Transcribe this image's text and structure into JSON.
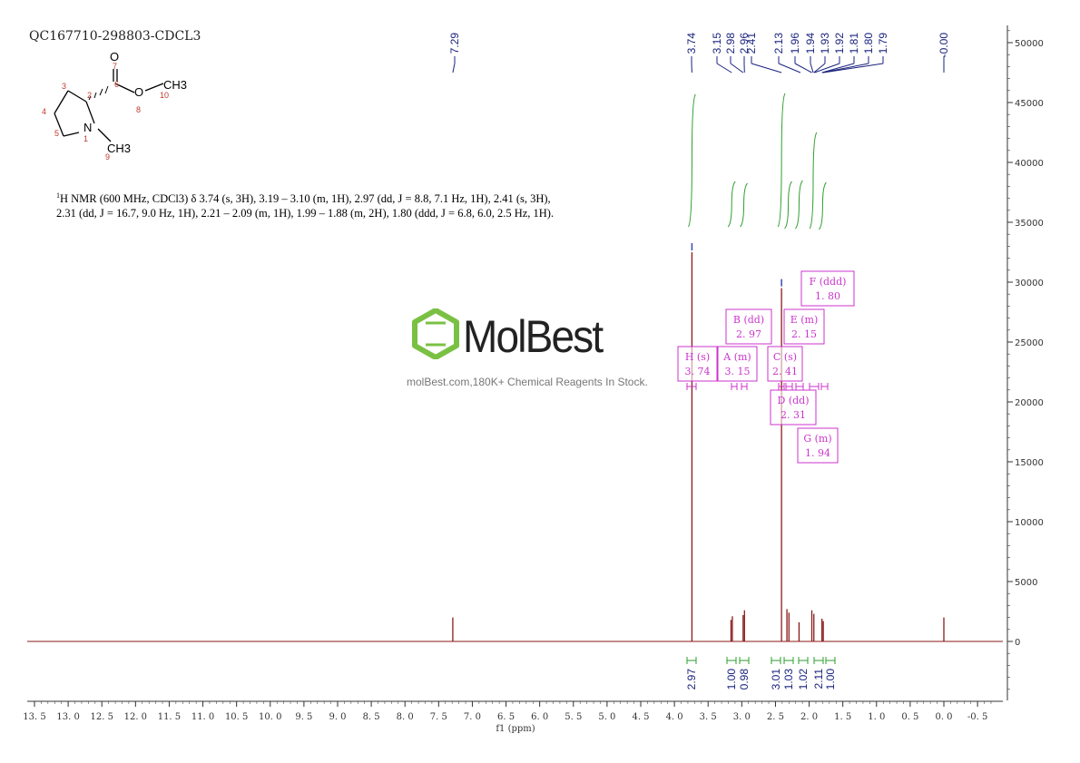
{
  "header": {
    "sample_id": "QC167710-298803-CDCL3"
  },
  "structure": {
    "atoms": [
      "O",
      "O",
      "CH3",
      "N",
      "CH3"
    ],
    "numbers": [
      "7",
      "6",
      "2",
      "3",
      "4",
      "5",
      "1",
      "8",
      "10",
      "9"
    ]
  },
  "nmr_text": {
    "superscript": "1",
    "line": "H NMR (600 MHz, CDCl3) δ 3.74 (s, 3H), 3.19 – 3.10 (m, 1H), 2.97 (dd, J = 8.8, 7.1 Hz, 1H), 2.41 (s, 3H), 2.31 (dd, J = 16.7, 9.0 Hz, 1H), 2.21 – 2.09 (m, 1H), 1.99 – 1.88 (m, 2H), 1.80 (ddd, J = 6.8, 6.0, 2.5 Hz, 1H)."
  },
  "watermark": {
    "brand": "MolBest",
    "tagline": "molBest.com,180K+ Chemical Reagents In Stock."
  },
  "colors": {
    "spectrum": "#8b1a1a",
    "peak_labels": "#1a237e",
    "integral": "#2e9e2e",
    "multiplet_box": "#cc33cc",
    "axis": "#333333",
    "logo_green": "#7ac143"
  },
  "chart_data": {
    "type": "line",
    "xlabel": "f1 (ppm)",
    "xlim": [
      13.5,
      -0.7
    ],
    "ylim": [
      -5000,
      50000
    ],
    "x_ticks": [
      "13.5",
      "13.0",
      "12.5",
      "12.0",
      "11.5",
      "11.0",
      "10.5",
      "10.0",
      "9.5",
      "9.0",
      "8.5",
      "8.0",
      "7.5",
      "7.0",
      "6.5",
      "6.0",
      "5.5",
      "5.0",
      "4.5",
      "4.0",
      "3.5",
      "3.0",
      "2.5",
      "2.0",
      "1.5",
      "1.0",
      "0.5",
      "0.0",
      "-0.5"
    ],
    "y_ticks": [
      "50000",
      "45000",
      "40000",
      "35000",
      "30000",
      "25000",
      "20000",
      "15000",
      "10000",
      "5000",
      "0"
    ],
    "peaks": [
      {
        "ppm": 7.29,
        "height": 2000
      },
      {
        "ppm": 3.74,
        "height": 32500
      },
      {
        "ppm": 3.16,
        "height": 1800
      },
      {
        "ppm": 3.14,
        "height": 2100
      },
      {
        "ppm": 2.98,
        "height": 2200
      },
      {
        "ppm": 2.96,
        "height": 2600
      },
      {
        "ppm": 2.41,
        "height": 29500
      },
      {
        "ppm": 2.33,
        "height": 2700
      },
      {
        "ppm": 2.3,
        "height": 2400
      },
      {
        "ppm": 2.15,
        "height": 1600
      },
      {
        "ppm": 1.96,
        "height": 2600
      },
      {
        "ppm": 1.93,
        "height": 2300
      },
      {
        "ppm": 1.81,
        "height": 1900
      },
      {
        "ppm": 1.79,
        "height": 1700
      },
      {
        "ppm": 0.0,
        "height": 2000
      }
    ],
    "peak_labels": [
      "7.29",
      "3.74",
      "3.15",
      "2.98",
      "2.96",
      "2.41",
      "2.13",
      "1.96",
      "1.94",
      "1.93",
      "1.92",
      "1.81",
      "1.80",
      "1.79",
      "-0.00"
    ],
    "integrals": [
      {
        "ppm": 3.74,
        "value": "2.97"
      },
      {
        "ppm": 3.15,
        "value": "1.00"
      },
      {
        "ppm": 2.97,
        "value": "0.98"
      },
      {
        "ppm": 2.41,
        "value": "3.01"
      },
      {
        "ppm": 2.31,
        "value": "1.03"
      },
      {
        "ppm": 2.15,
        "value": "1.02"
      },
      {
        "ppm": 1.94,
        "value": "2.11"
      },
      {
        "ppm": 1.8,
        "value": "1.00"
      }
    ],
    "multiplets": [
      {
        "letter": "H",
        "mult": "(s)",
        "shift": "3.74"
      },
      {
        "letter": "A",
        "mult": "(m)",
        "shift": "3.15"
      },
      {
        "letter": "B",
        "mult": "(dd)",
        "shift": "2.97"
      },
      {
        "letter": "C",
        "mult": "(s)",
        "shift": "2.41"
      },
      {
        "letter": "D",
        "mult": "(dd)",
        "shift": "2.31"
      },
      {
        "letter": "E",
        "mult": "(m)",
        "shift": "2.15"
      },
      {
        "letter": "F",
        "mult": "(ddd)",
        "shift": "1.80"
      },
      {
        "letter": "G",
        "mult": "(m)",
        "shift": "1.94"
      }
    ]
  }
}
